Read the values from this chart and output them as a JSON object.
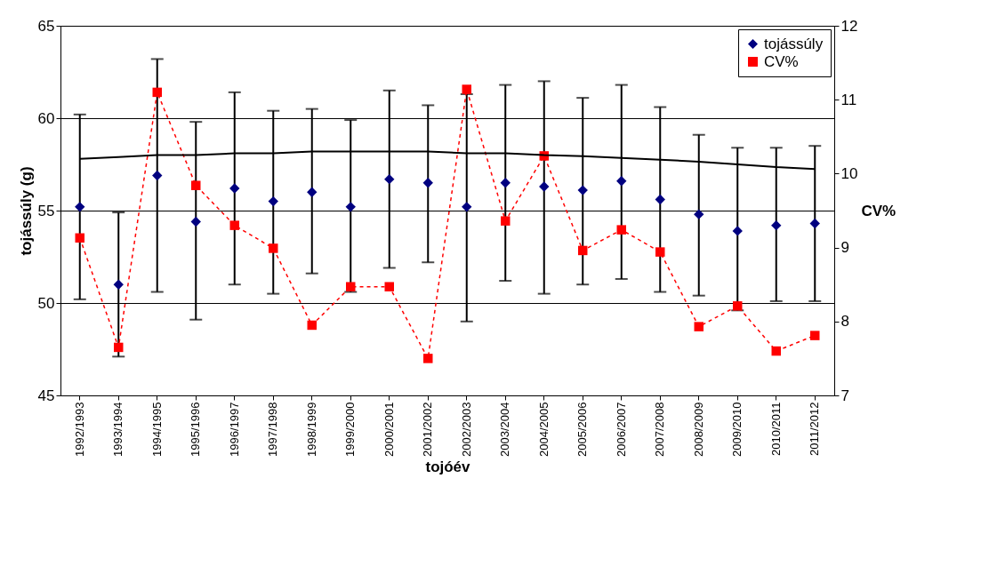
{
  "chart_data": {
    "type": "scatter",
    "xlabel": "tojóév",
    "ylabel": "tojássúly (g)",
    "y2label": "CV%",
    "categories": [
      "1992/1993",
      "1993/1994",
      "1994/1995",
      "1995/1996",
      "1996/1997",
      "1997/1998",
      "1998/1999",
      "1999/2000",
      "2000/2001",
      "2001/2002",
      "2002/2003",
      "2003/2004",
      "2004/2005",
      "2005/2006",
      "2006/2007",
      "2007/2008",
      "2008/2009",
      "2009/2010",
      "2010/2011",
      "2011/2012"
    ],
    "ylim": [
      45,
      65
    ],
    "yticks": [
      45,
      50,
      55,
      60,
      65
    ],
    "y2lim": [
      7,
      12
    ],
    "y2ticks": [
      7,
      8,
      9,
      10,
      11,
      12
    ],
    "grid": "y",
    "legend": "top right",
    "series": [
      {
        "name": "tojássúly",
        "marker": "diamond",
        "color": "#000080",
        "values": [
          55.2,
          51.0,
          56.9,
          54.4,
          56.2,
          55.5,
          56.0,
          55.2,
          56.7,
          56.5,
          55.2,
          56.5,
          56.3,
          56.1,
          56.6,
          55.6,
          54.8,
          53.9,
          54.2,
          54.3
        ],
        "errors": [
          [
            50.2,
            60.2
          ],
          [
            47.1,
            54.9
          ],
          [
            50.6,
            63.2
          ],
          [
            49.1,
            59.8
          ],
          [
            51.0,
            61.4
          ],
          [
            50.5,
            60.4
          ],
          [
            51.6,
            60.5
          ],
          [
            50.6,
            59.9
          ],
          [
            51.9,
            61.5
          ],
          [
            52.2,
            60.7
          ],
          [
            49.0,
            61.3
          ],
          [
            51.2,
            61.8
          ],
          [
            50.5,
            62.0
          ],
          [
            51.0,
            61.1
          ],
          [
            51.3,
            61.8
          ],
          [
            50.6,
            60.6
          ],
          [
            50.4,
            59.1
          ],
          [
            49.6,
            58.4
          ],
          [
            50.1,
            58.4
          ],
          [
            50.1,
            58.5
          ]
        ]
      },
      {
        "name": "CV%",
        "type": "line",
        "axis": "y2",
        "marker": "square",
        "line_style": "dashed",
        "color": "#ff0000",
        "values": [
          9.13,
          7.65,
          11.1,
          9.84,
          9.3,
          8.99,
          7.95,
          8.47,
          8.47,
          7.5,
          11.14,
          9.36,
          10.24,
          8.96,
          9.24,
          8.94,
          7.93,
          8.21,
          7.6,
          7.81
        ]
      },
      {
        "type": "line",
        "marker": "none",
        "line_style": "solid",
        "color": "#000000",
        "values": [
          57.8,
          57.9,
          58.0,
          58.0,
          58.1,
          58.1,
          58.2,
          58.2,
          58.2,
          58.2,
          58.1,
          58.1,
          58.0,
          57.95,
          57.85,
          57.75,
          57.65,
          57.5,
          57.35,
          57.25
        ]
      }
    ]
  }
}
